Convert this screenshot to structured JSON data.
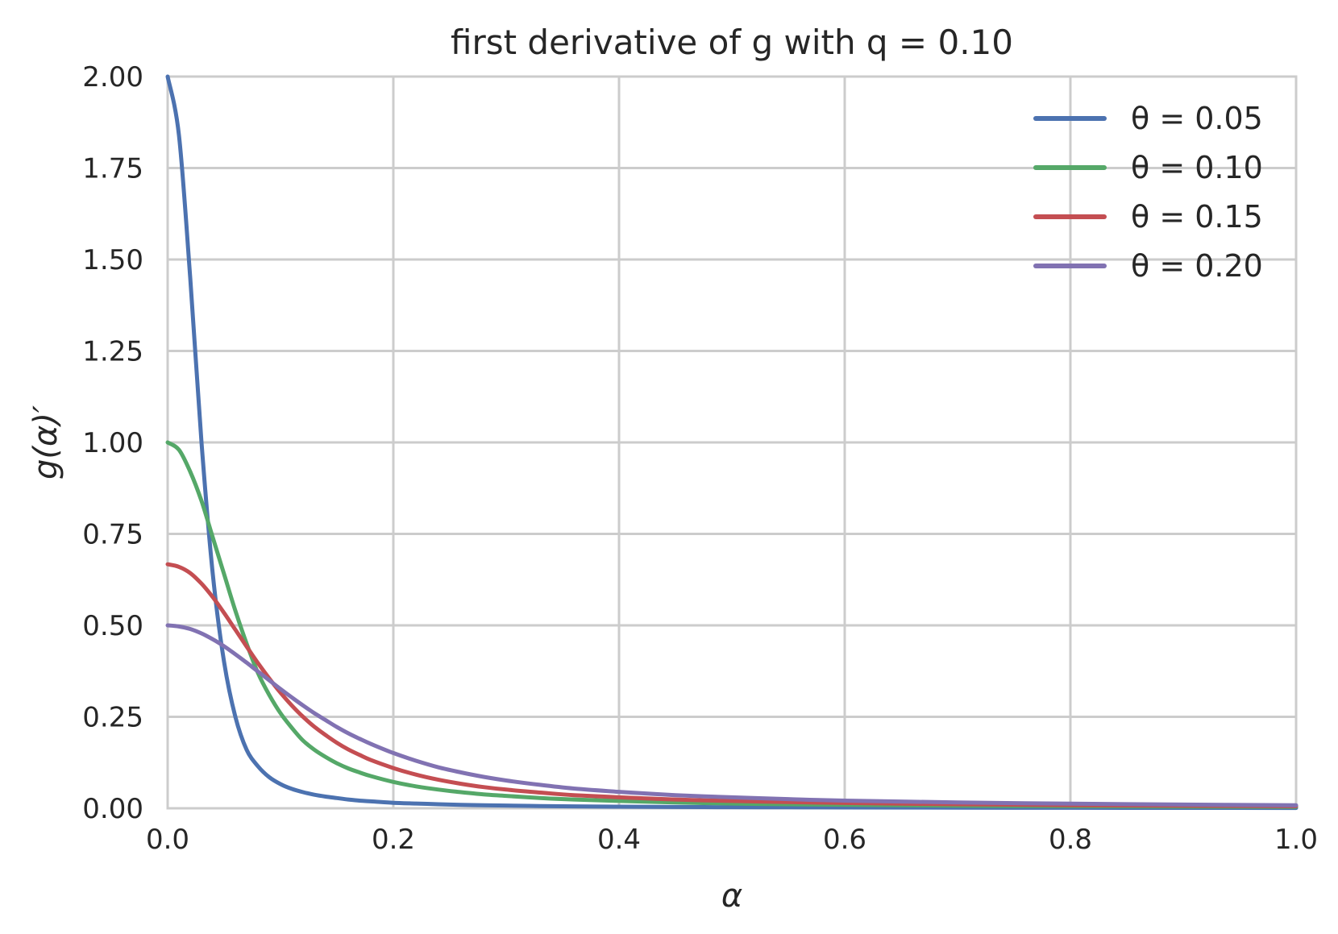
{
  "chart_data": {
    "type": "line",
    "title": "first derivative of g with q = 0.10",
    "xlabel": "α",
    "ylabel": "g(α)′",
    "xlim": [
      0.0,
      1.0
    ],
    "ylim": [
      0.0,
      2.0
    ],
    "x_ticks": [
      0.0,
      0.2,
      0.4,
      0.6,
      0.8,
      1.0
    ],
    "x_tick_labels": [
      "0.0",
      "0.2",
      "0.4",
      "0.6",
      "0.8",
      "1.0"
    ],
    "y_ticks": [
      0.0,
      0.25,
      0.5,
      0.75,
      1.0,
      1.25,
      1.5,
      1.75,
      2.0
    ],
    "y_tick_labels": [
      "0.00",
      "0.25",
      "0.50",
      "0.75",
      "1.00",
      "1.25",
      "1.50",
      "1.75",
      "2.00"
    ],
    "grid": true,
    "legend_position": "top-right",
    "x": [
      0.0,
      0.01,
      0.02,
      0.03,
      0.04,
      0.05,
      0.06,
      0.07,
      0.08,
      0.09,
      0.1,
      0.11,
      0.12,
      0.13,
      0.14,
      0.15,
      0.16,
      0.17,
      0.18,
      0.2,
      0.22,
      0.24,
      0.26,
      0.28,
      0.3,
      0.33,
      0.36,
      0.4,
      0.45,
      0.5,
      0.55,
      0.6,
      0.7,
      0.8,
      0.9,
      1.0
    ],
    "series": [
      {
        "name": "θ = 0.05",
        "color": "#4c72b0",
        "values": [
          2.0,
          1.84,
          1.45,
          1.0,
          0.64,
          0.4,
          0.25,
          0.16,
          0.115,
          0.085,
          0.066,
          0.053,
          0.044,
          0.037,
          0.032,
          0.028,
          0.024,
          0.021,
          0.019,
          0.015,
          0.013,
          0.011,
          0.0095,
          0.0083,
          0.0074,
          0.0062,
          0.0053,
          0.0044,
          0.0036,
          0.003,
          0.0026,
          0.0022,
          0.0017,
          0.0013,
          0.0011,
          0.0009
        ]
      },
      {
        "name": "θ = 0.10",
        "color": "#55a868",
        "values": [
          1.0,
          0.98,
          0.92,
          0.84,
          0.74,
          0.64,
          0.54,
          0.45,
          0.37,
          0.31,
          0.26,
          0.22,
          0.185,
          0.16,
          0.14,
          0.123,
          0.109,
          0.098,
          0.088,
          0.072,
          0.06,
          0.051,
          0.044,
          0.038,
          0.034,
          0.028,
          0.024,
          0.02,
          0.016,
          0.013,
          0.011,
          0.0096,
          0.0073,
          0.0058,
          0.0047,
          0.0039
        ]
      },
      {
        "name": "θ = 0.15",
        "color": "#c44e52",
        "values": [
          0.667,
          0.66,
          0.643,
          0.614,
          0.577,
          0.534,
          0.488,
          0.442,
          0.397,
          0.355,
          0.316,
          0.281,
          0.25,
          0.223,
          0.2,
          0.179,
          0.161,
          0.146,
          0.132,
          0.11,
          0.092,
          0.078,
          0.067,
          0.058,
          0.051,
          0.043,
          0.036,
          0.03,
          0.024,
          0.02,
          0.017,
          0.0145,
          0.011,
          0.0087,
          0.007,
          0.0058
        ]
      },
      {
        "name": "θ = 0.20",
        "color": "#8172b2",
        "values": [
          0.5,
          0.497,
          0.49,
          0.478,
          0.462,
          0.443,
          0.421,
          0.398,
          0.374,
          0.35,
          0.326,
          0.303,
          0.281,
          0.26,
          0.241,
          0.222,
          0.205,
          0.19,
          0.176,
          0.151,
          0.13,
          0.112,
          0.098,
          0.086,
          0.076,
          0.064,
          0.054,
          0.045,
          0.036,
          0.03,
          0.025,
          0.021,
          0.016,
          0.0125,
          0.0101,
          0.0083
        ]
      }
    ]
  }
}
